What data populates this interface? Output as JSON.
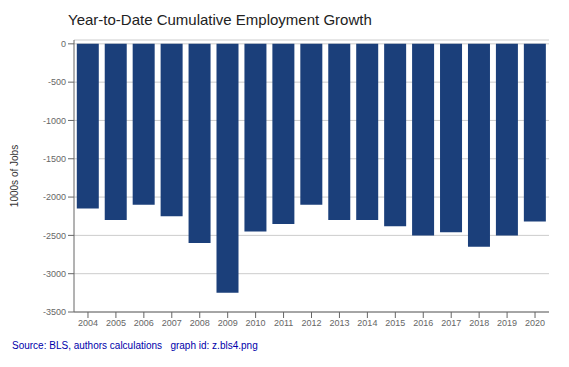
{
  "chart_data": {
    "type": "bar",
    "title": "Year-to-Date Cumulative Employment Growth",
    "ylabel": "1000s of Jobs",
    "annotation": "Source: BLS, authors calculations   graph id: z.bls4.png",
    "categories": [
      "2004",
      "2005",
      "2006",
      "2007",
      "2008",
      "2009",
      "2010",
      "2011",
      "2012",
      "2013",
      "2014",
      "2015",
      "2016",
      "2017",
      "2018",
      "2019",
      "2020"
    ],
    "values": [
      -2150,
      -2300,
      -2100,
      -2250,
      -2600,
      -3250,
      -2450,
      -2350,
      -2100,
      -2300,
      -2300,
      -2380,
      -2500,
      -2460,
      -2650,
      -2500,
      -2320
    ],
    "color": "#1b3f7a",
    "ylim": [
      -3500,
      50
    ],
    "yticks": [
      0,
      -500,
      -1000,
      -1500,
      -2000,
      -2500,
      -3000,
      -3500
    ],
    "grid": true
  }
}
